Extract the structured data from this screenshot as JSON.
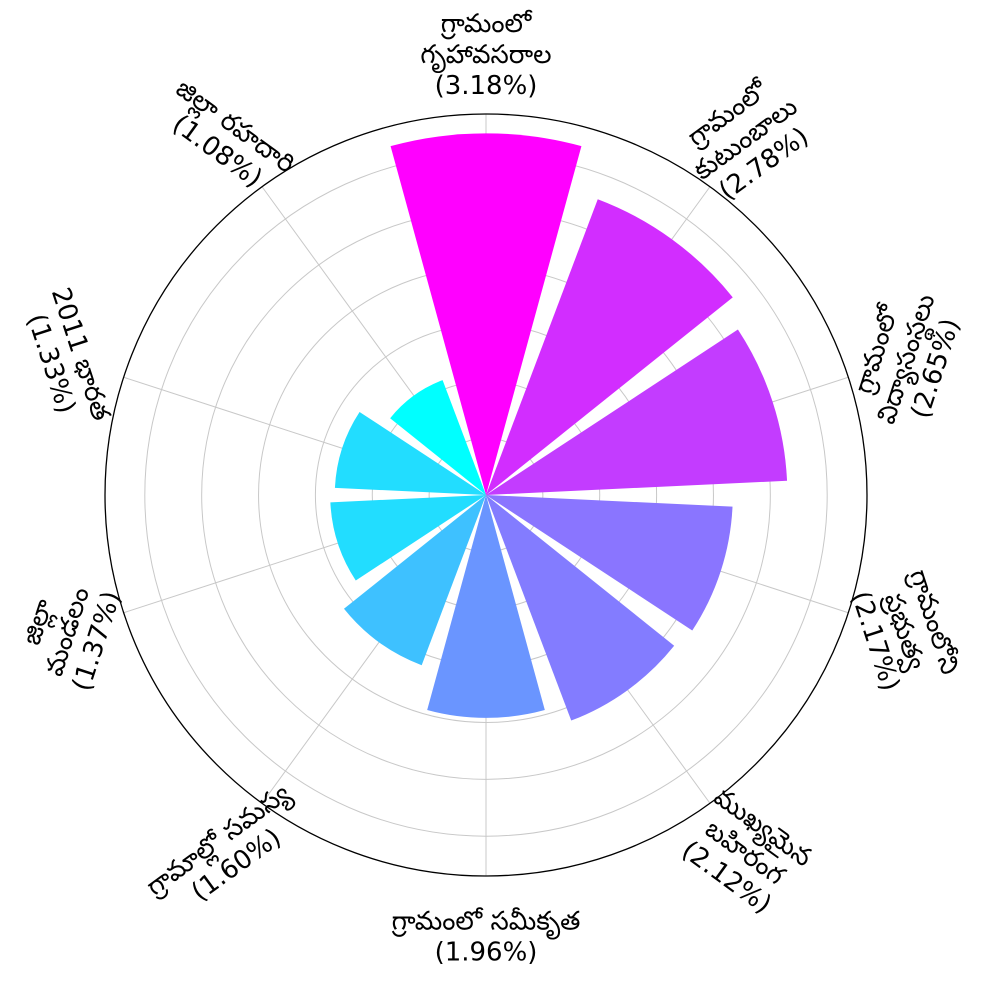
{
  "chart_data": {
    "type": "polar-bar",
    "title": "",
    "grid": true,
    "legend": "none",
    "colormap": "cool",
    "rmax": 3.35,
    "gridlines": [
      0.5,
      1.0,
      1.5,
      2.0,
      2.5,
      3.0
    ],
    "categories": [
      {
        "lines": [
          "గ్రామంలో",
          "గృహావసరాల"
        ],
        "value_text": "(3.18%)",
        "value": 3.18,
        "color": "#ff00ff"
      },
      {
        "lines": [
          "గ్రామంలో",
          "కుటుంబాలు"
        ],
        "value_text": "(2.78%)",
        "value": 2.78,
        "color": "#d22dff"
      },
      {
        "lines": [
          "గ్రామంలో",
          "విద్యాసంస్థలు"
        ],
        "value_text": "(2.65%)",
        "value": 2.65,
        "color": "#c33cff"
      },
      {
        "lines": [
          "గ్రామంలోని",
          "ప్రభుత్వ"
        ],
        "value_text": "(2.17%)",
        "value": 2.17,
        "color": "#8a75ff"
      },
      {
        "lines": [
          "ముఖ్యమైన",
          "బహిరంగ"
        ],
        "value_text": "(2.12%)",
        "value": 2.12,
        "color": "#837cff"
      },
      {
        "lines": [
          "గ్రామంలో సమీకృత"
        ],
        "value_text": "(1.96%)",
        "value": 1.96,
        "color": "#6a95ff"
      },
      {
        "lines": [
          "గ్రామాల్లో సమస్య"
        ],
        "value_text": "(1.60%)",
        "value": 1.6,
        "color": "#3ec1ff"
      },
      {
        "lines": [
          "జిల్లా",
          "మండలం"
        ],
        "value_text": "(1.37%)",
        "value": 1.37,
        "color": "#22ddff"
      },
      {
        "lines": [
          "2011 భారత"
        ],
        "value_text": "(1.33%)",
        "value": 1.33,
        "color": "#22ddff"
      },
      {
        "lines": [
          "జిల్లా రహదారి"
        ],
        "value_text": "(1.08%)",
        "value": 1.08,
        "color": "#00ffff"
      }
    ]
  }
}
